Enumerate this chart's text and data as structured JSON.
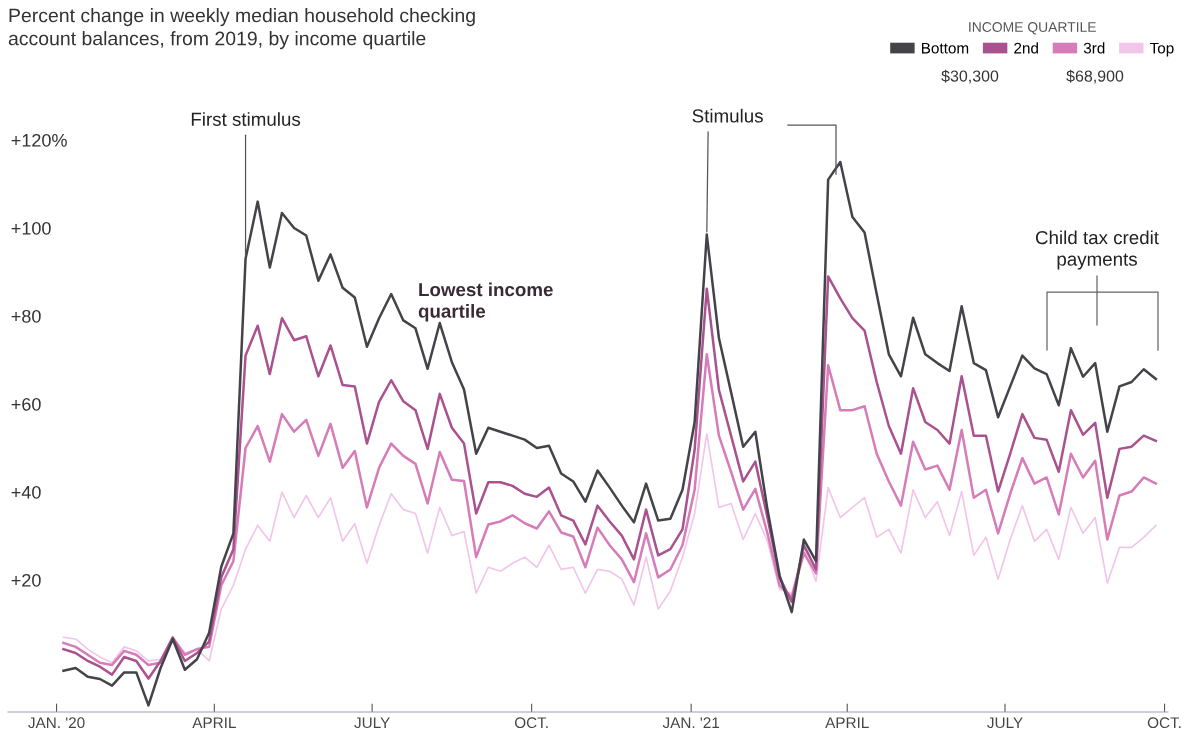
{
  "chart_data": {
    "type": "line",
    "title": "Percent change in weekly median household checking\naccount balances, from 2019, by income quartile",
    "legend_title": "INCOME QUARTILE",
    "legend": "top right",
    "grid": false,
    "marker": "none",
    "line_style": "solid",
    "x": [
      "2020-01-05",
      "2020-01-12",
      "2020-01-19",
      "2020-01-26",
      "2020-02-02",
      "2020-02-09",
      "2020-02-16",
      "2020-02-23",
      "2020-03-01",
      "2020-03-08",
      "2020-03-15",
      "2020-03-22",
      "2020-03-29",
      "2020-04-05",
      "2020-04-12",
      "2020-04-19",
      "2020-04-26",
      "2020-05-03",
      "2020-05-10",
      "2020-05-17",
      "2020-05-24",
      "2020-05-31",
      "2020-06-07",
      "2020-06-14",
      "2020-06-21",
      "2020-06-28",
      "2020-07-05",
      "2020-07-12",
      "2020-07-19",
      "2020-07-26",
      "2020-08-02",
      "2020-08-09",
      "2020-08-16",
      "2020-08-23",
      "2020-08-30",
      "2020-09-06",
      "2020-09-13",
      "2020-09-20",
      "2020-09-27",
      "2020-10-04",
      "2020-10-11",
      "2020-10-18",
      "2020-10-25",
      "2020-11-01",
      "2020-11-08",
      "2020-11-15",
      "2020-11-22",
      "2020-11-29",
      "2020-12-06",
      "2020-12-13",
      "2020-12-20",
      "2020-12-27",
      "2021-01-03",
      "2021-01-10",
      "2021-01-17",
      "2021-01-24",
      "2021-01-31",
      "2021-02-07",
      "2021-02-14",
      "2021-02-21",
      "2021-02-28",
      "2021-03-07",
      "2021-03-14",
      "2021-03-21",
      "2021-03-28",
      "2021-04-04",
      "2021-04-11",
      "2021-04-18",
      "2021-04-25",
      "2021-05-02",
      "2021-05-09",
      "2021-05-16",
      "2021-05-23",
      "2021-05-30",
      "2021-06-06",
      "2021-06-13",
      "2021-06-20",
      "2021-06-27",
      "2021-07-04",
      "2021-07-11",
      "2021-07-18",
      "2021-07-25",
      "2021-08-01",
      "2021-08-08",
      "2021-08-15",
      "2021-08-22",
      "2021-08-29",
      "2021-09-05",
      "2021-09-12",
      "2021-09-19",
      "2021-09-26"
    ],
    "series": [
      {
        "name": "Bottom",
        "color": "#45434a",
        "values": [
          -0.6,
          0,
          -2,
          -2.5,
          -4,
          -1,
          -1,
          -8.5,
          0,
          6.6,
          -0.4,
          2,
          8,
          23,
          30.6,
          93,
          106,
          91,
          103.4,
          100,
          98.3,
          88,
          94,
          86.4,
          84.2,
          73,
          79.5,
          85,
          79,
          77.2,
          68,
          78.4,
          69.5,
          63.3,
          48.7,
          54.6,
          53.7,
          52.8,
          51.9,
          50,
          50.5,
          44.2,
          42.4,
          37.8,
          44.9,
          41,
          36.9,
          33.1,
          41.9,
          33.5,
          33.9,
          40.5,
          55.9,
          98.5,
          75,
          62.7,
          50.3,
          53.7,
          36,
          21,
          12.7,
          29.2,
          24.3,
          111,
          115,
          102.5,
          99,
          85,
          71.3,
          66.3,
          79.6,
          71.3,
          69.3,
          67.5,
          82.2,
          69.3,
          67.7,
          57,
          64,
          71,
          68.1,
          66.8,
          59.7,
          72.7,
          66.2,
          69.3,
          53.7,
          64,
          65,
          67.9,
          65.7
        ]
      },
      {
        "name": "2nd",
        "color": "#a9528f",
        "values": [
          4.3,
          3.4,
          1.6,
          0.3,
          -1.5,
          2.5,
          1.6,
          -2.4,
          1.6,
          6.9,
          1.6,
          3.4,
          6,
          20.6,
          27,
          71,
          77.8,
          66.8,
          79.5,
          74.5,
          75.4,
          66.3,
          73.3,
          64.3,
          64,
          51,
          60.5,
          65.4,
          60.6,
          58.6,
          49.8,
          62.3,
          54.6,
          51,
          35.1,
          42.2,
          42.2,
          41.4,
          39.6,
          38.9,
          41,
          34.7,
          33.5,
          28.1,
          36.9,
          33.3,
          30.1,
          24.7,
          36,
          25.6,
          27,
          31.5,
          49.6,
          86.2,
          63.2,
          52.8,
          42.4,
          46.9,
          34.2,
          20.6,
          15,
          27.9,
          22.4,
          89,
          84,
          79.5,
          76.7,
          65,
          55,
          48.7,
          63.6,
          55.9,
          54.1,
          51,
          66.3,
          52.8,
          52.8,
          40.1,
          48.7,
          57.7,
          52.3,
          51.9,
          44.6,
          58.6,
          53,
          55.7,
          38.7,
          49.8,
          50.3,
          52.8,
          51.6
        ]
      },
      {
        "name": "3rd",
        "color": "#d67cb8",
        "values": [
          5.7,
          4.8,
          3,
          1.2,
          0.7,
          3.9,
          3,
          0.7,
          1.2,
          6.9,
          3,
          4.3,
          4.8,
          18.8,
          24.3,
          50,
          55,
          46.9,
          57.7,
          53.7,
          56.4,
          48.2,
          55.5,
          45.5,
          49.3,
          36.5,
          45.5,
          51,
          48.2,
          46.4,
          37.4,
          49.1,
          42.8,
          42.5,
          25.2,
          32.6,
          33.3,
          34.7,
          32.9,
          31.7,
          35.6,
          30.8,
          29.9,
          22.9,
          31.9,
          27.9,
          24.7,
          19.5,
          30.6,
          20.6,
          22.4,
          27.9,
          40.5,
          71.3,
          52.8,
          44.6,
          36,
          40.7,
          30.6,
          18.8,
          16.1,
          26.1,
          21.5,
          68.8,
          58.6,
          58.6,
          59.5,
          48.7,
          42.4,
          36.9,
          51.4,
          45.1,
          46,
          40.5,
          54.1,
          38.7,
          40.5,
          30.6,
          39.6,
          47.7,
          41.9,
          43.3,
          34.9,
          48.7,
          43.3,
          47.1,
          29.2,
          39.2,
          40.1,
          43.3,
          41.9
        ]
      },
      {
        "name": "Top",
        "color": "#f2c6ea",
        "values": [
          7,
          6.6,
          4.3,
          2.5,
          1.2,
          4.8,
          3.9,
          1.6,
          2,
          7,
          3.4,
          4.3,
          1.6,
          13.4,
          18.8,
          27,
          32.4,
          28.8,
          40,
          34.2,
          39.2,
          34.2,
          38.7,
          28.8,
          32.8,
          23.8,
          32.4,
          39.6,
          36,
          35.1,
          26.1,
          36.5,
          30.1,
          31,
          17,
          22.9,
          22,
          23.8,
          25.2,
          22.9,
          27.9,
          22.4,
          22.9,
          17,
          22.4,
          22,
          20.2,
          14.3,
          25.2,
          13.4,
          17.5,
          25.2,
          35.1,
          53.2,
          36.5,
          37.4,
          29.2,
          35.1,
          28.8,
          17.9,
          17,
          27,
          19.7,
          41,
          34.2,
          36.5,
          38.7,
          29.7,
          31.5,
          26.1,
          40.5,
          34.2,
          37.8,
          30.1,
          40.1,
          25.6,
          29.7,
          20.2,
          29.2,
          36.9,
          28.8,
          31.5,
          24.7,
          36.5,
          30.6,
          34.2,
          19.3,
          27.4,
          27.4,
          29.7,
          32.4
        ]
      }
    ],
    "xlim": [
      "2019-12-04",
      "2021-10-03"
    ],
    "xticks": [
      {
        "value": "2020-01-01",
        "label": "JAN. '20"
      },
      {
        "value": "2020-04-01",
        "label": "APRIL"
      },
      {
        "value": "2020-07-01",
        "label": "JULY"
      },
      {
        "value": "2020-10-01",
        "label": "OCT."
      },
      {
        "value": "2021-01-01",
        "label": "JAN. '21"
      },
      {
        "value": "2021-04-01",
        "label": "APRIL"
      },
      {
        "value": "2021-07-01",
        "label": "JULY"
      },
      {
        "value": "2021-10-01",
        "label": "OCT."
      }
    ],
    "ylim": [
      -10,
      120
    ],
    "yticks": [
      {
        "value": 20,
        "label": "+20"
      },
      {
        "value": 40,
        "label": "+40"
      },
      {
        "value": 60,
        "label": "+60"
      },
      {
        "value": 80,
        "label": "+80"
      },
      {
        "value": 100,
        "label": "+100"
      },
      {
        "value": 120,
        "label": "+120%"
      }
    ],
    "annotations": [
      {
        "text": "First stimulus",
        "x": "2020-04-19",
        "y": 93
      },
      "Lowest income\nquartile",
      {
        "text": "Stimulus",
        "x": "2021-01-10",
        "y": 98.5
      },
      "Child tax credit\npayments",
      "$30,300",
      "$68,900"
    ]
  }
}
